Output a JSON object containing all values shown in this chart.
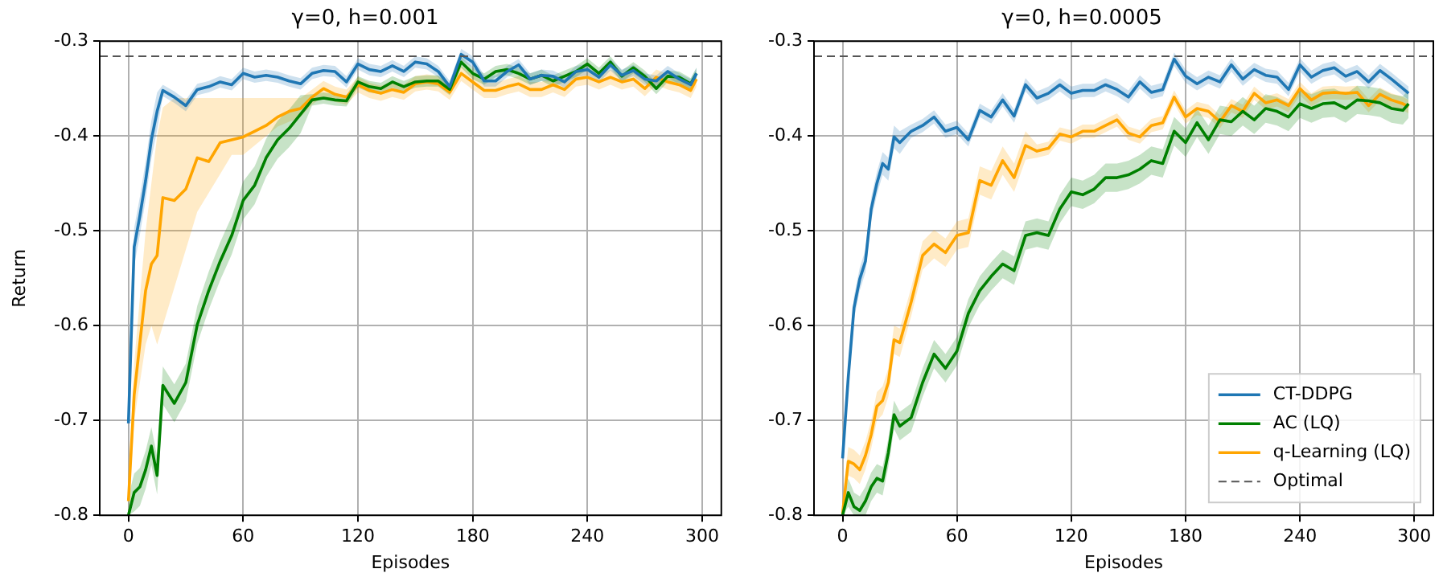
{
  "chart_data": [
    {
      "type": "line",
      "title": "γ=0, h=0.001",
      "xlabel": "Episodes",
      "ylabel": "Return",
      "xlim": [
        -15,
        310
      ],
      "xticks": [
        0,
        60,
        120,
        180,
        240,
        300
      ],
      "ylim": [
        -0.8,
        -0.3
      ],
      "yticks": [
        -0.8,
        -0.7,
        -0.6,
        -0.5,
        -0.4,
        -0.3
      ],
      "grid": true,
      "x": [
        0,
        3,
        6,
        9,
        12,
        15,
        18,
        24,
        30,
        36,
        42,
        48,
        54,
        60,
        66,
        72,
        78,
        84,
        90,
        96,
        102,
        108,
        114,
        120,
        126,
        132,
        138,
        144,
        150,
        156,
        162,
        168,
        174,
        180,
        186,
        192,
        198,
        204,
        210,
        216,
        222,
        228,
        234,
        240,
        246,
        252,
        258,
        264,
        270,
        276,
        282,
        288,
        294,
        297
      ],
      "ref_lines": [
        {
          "axis": "y",
          "value": -0.316,
          "color": "#555555",
          "line_style": "dashed"
        }
      ],
      "series": [
        {
          "color": "#1f77b4",
          "values": [
            -0.703,
            -0.517,
            -0.484,
            -0.447,
            -0.404,
            -0.374,
            -0.352,
            -0.359,
            -0.368,
            -0.351,
            -0.348,
            -0.343,
            -0.346,
            -0.334,
            -0.338,
            -0.336,
            -0.338,
            -0.342,
            -0.345,
            -0.334,
            -0.331,
            -0.332,
            -0.343,
            -0.324,
            -0.33,
            -0.332,
            -0.326,
            -0.332,
            -0.322,
            -0.324,
            -0.332,
            -0.348,
            -0.314,
            -0.322,
            -0.342,
            -0.342,
            -0.332,
            -0.325,
            -0.34,
            -0.336,
            -0.337,
            -0.343,
            -0.332,
            -0.33,
            -0.338,
            -0.325,
            -0.336,
            -0.331,
            -0.34,
            -0.342,
            -0.332,
            -0.34,
            -0.346,
            -0.334
          ],
          "lower": [
            -0.723,
            -0.537,
            -0.504,
            -0.467,
            -0.424,
            -0.394,
            -0.358,
            -0.365,
            -0.374,
            -0.357,
            -0.354,
            -0.349,
            -0.352,
            -0.34,
            -0.344,
            -0.342,
            -0.344,
            -0.348,
            -0.351,
            -0.34,
            -0.337,
            -0.338,
            -0.349,
            -0.33,
            -0.336,
            -0.338,
            -0.332,
            -0.338,
            -0.328,
            -0.33,
            -0.338,
            -0.354,
            -0.32,
            -0.328,
            -0.348,
            -0.348,
            -0.338,
            -0.331,
            -0.346,
            -0.342,
            -0.343,
            -0.349,
            -0.338,
            -0.336,
            -0.344,
            -0.331,
            -0.342,
            -0.337,
            -0.346,
            -0.348,
            -0.338,
            -0.346,
            -0.352,
            -0.34
          ],
          "upper": [
            -0.683,
            -0.497,
            -0.464,
            -0.427,
            -0.384,
            -0.354,
            -0.346,
            -0.353,
            -0.362,
            -0.345,
            -0.342,
            -0.337,
            -0.34,
            -0.328,
            -0.332,
            -0.33,
            -0.332,
            -0.336,
            -0.339,
            -0.328,
            -0.325,
            -0.326,
            -0.337,
            -0.318,
            -0.324,
            -0.326,
            -0.32,
            -0.326,
            -0.316,
            -0.318,
            -0.326,
            -0.342,
            -0.308,
            -0.316,
            -0.336,
            -0.336,
            -0.326,
            -0.319,
            -0.334,
            -0.33,
            -0.331,
            -0.337,
            -0.326,
            -0.324,
            -0.332,
            -0.319,
            -0.33,
            -0.325,
            -0.334,
            -0.336,
            -0.326,
            -0.334,
            -0.34,
            -0.328
          ]
        },
        {
          "color": "#008000",
          "values": [
            -0.8,
            -0.776,
            -0.77,
            -0.752,
            -0.727,
            -0.758,
            -0.663,
            -0.682,
            -0.66,
            -0.599,
            -0.563,
            -0.532,
            -0.505,
            -0.468,
            -0.452,
            -0.423,
            -0.404,
            -0.392,
            -0.377,
            -0.362,
            -0.36,
            -0.362,
            -0.363,
            -0.343,
            -0.348,
            -0.35,
            -0.343,
            -0.348,
            -0.343,
            -0.342,
            -0.342,
            -0.351,
            -0.322,
            -0.334,
            -0.34,
            -0.332,
            -0.33,
            -0.334,
            -0.34,
            -0.336,
            -0.342,
            -0.337,
            -0.332,
            -0.324,
            -0.334,
            -0.322,
            -0.337,
            -0.328,
            -0.337,
            -0.35,
            -0.337,
            -0.338,
            -0.345,
            -0.334
          ],
          "lower": [
            -0.8,
            -0.796,
            -0.79,
            -0.772,
            -0.747,
            -0.778,
            -0.683,
            -0.702,
            -0.68,
            -0.619,
            -0.583,
            -0.552,
            -0.525,
            -0.488,
            -0.472,
            -0.443,
            -0.424,
            -0.412,
            -0.397,
            -0.368,
            -0.366,
            -0.368,
            -0.369,
            -0.349,
            -0.354,
            -0.356,
            -0.349,
            -0.354,
            -0.349,
            -0.348,
            -0.348,
            -0.357,
            -0.328,
            -0.34,
            -0.346,
            -0.338,
            -0.336,
            -0.34,
            -0.346,
            -0.342,
            -0.348,
            -0.343,
            -0.338,
            -0.33,
            -0.34,
            -0.328,
            -0.343,
            -0.334,
            -0.343,
            -0.356,
            -0.343,
            -0.344,
            -0.351,
            -0.34
          ],
          "upper": [
            -0.78,
            -0.756,
            -0.75,
            -0.732,
            -0.707,
            -0.738,
            -0.643,
            -0.662,
            -0.64,
            -0.579,
            -0.543,
            -0.512,
            -0.485,
            -0.448,
            -0.432,
            -0.403,
            -0.384,
            -0.372,
            -0.357,
            -0.356,
            -0.354,
            -0.356,
            -0.357,
            -0.337,
            -0.342,
            -0.344,
            -0.337,
            -0.342,
            -0.337,
            -0.336,
            -0.336,
            -0.345,
            -0.316,
            -0.328,
            -0.334,
            -0.326,
            -0.324,
            -0.328,
            -0.334,
            -0.33,
            -0.336,
            -0.331,
            -0.326,
            -0.318,
            -0.328,
            -0.316,
            -0.331,
            -0.322,
            -0.331,
            -0.344,
            -0.331,
            -0.332,
            -0.339,
            -0.328
          ]
        },
        {
          "color": "#ffa500",
          "values": [
            -0.785,
            -0.673,
            -0.618,
            -0.563,
            -0.535,
            -0.526,
            -0.465,
            -0.468,
            -0.456,
            -0.423,
            -0.427,
            -0.407,
            -0.404,
            -0.401,
            -0.395,
            -0.389,
            -0.38,
            -0.374,
            -0.371,
            -0.359,
            -0.35,
            -0.356,
            -0.359,
            -0.346,
            -0.352,
            -0.355,
            -0.351,
            -0.354,
            -0.345,
            -0.343,
            -0.345,
            -0.354,
            -0.334,
            -0.343,
            -0.352,
            -0.352,
            -0.348,
            -0.345,
            -0.351,
            -0.351,
            -0.346,
            -0.351,
            -0.34,
            -0.338,
            -0.343,
            -0.338,
            -0.343,
            -0.34,
            -0.35,
            -0.338,
            -0.343,
            -0.346,
            -0.352,
            -0.34
          ],
          "lower": [
            -0.8,
            -0.7,
            -0.66,
            -0.62,
            -0.6,
            -0.62,
            -0.6,
            -0.56,
            -0.52,
            -0.48,
            -0.46,
            -0.44,
            -0.42,
            -0.42,
            -0.41,
            -0.4,
            -0.39,
            -0.385,
            -0.38,
            -0.367,
            -0.358,
            -0.364,
            -0.367,
            -0.354,
            -0.36,
            -0.363,
            -0.359,
            -0.362,
            -0.353,
            -0.351,
            -0.353,
            -0.362,
            -0.342,
            -0.351,
            -0.36,
            -0.36,
            -0.356,
            -0.353,
            -0.359,
            -0.359,
            -0.354,
            -0.359,
            -0.348,
            -0.346,
            -0.351,
            -0.346,
            -0.351,
            -0.348,
            -0.358,
            -0.346,
            -0.351,
            -0.354,
            -0.36,
            -0.348
          ],
          "upper": [
            -0.77,
            -0.64,
            -0.57,
            -0.5,
            -0.45,
            -0.4,
            -0.37,
            -0.36,
            -0.36,
            -0.36,
            -0.36,
            -0.36,
            -0.36,
            -0.36,
            -0.36,
            -0.36,
            -0.36,
            -0.36,
            -0.36,
            -0.351,
            -0.342,
            -0.348,
            -0.351,
            -0.338,
            -0.344,
            -0.347,
            -0.343,
            -0.346,
            -0.337,
            -0.335,
            -0.337,
            -0.346,
            -0.326,
            -0.335,
            -0.344,
            -0.344,
            -0.34,
            -0.337,
            -0.343,
            -0.343,
            -0.338,
            -0.343,
            -0.332,
            -0.33,
            -0.335,
            -0.33,
            -0.335,
            -0.332,
            -0.342,
            -0.33,
            -0.335,
            -0.338,
            -0.344,
            -0.332
          ]
        }
      ]
    },
    {
      "type": "line",
      "title": "γ=0, h=0.0005",
      "xlabel": "Episodes",
      "xlim": [
        -15,
        310
      ],
      "xticks": [
        0,
        60,
        120,
        180,
        240,
        300
      ],
      "ylim": [
        -0.8,
        -0.3
      ],
      "yticks": [
        -0.8,
        -0.7,
        -0.6,
        -0.5,
        -0.4,
        -0.3
      ],
      "grid": true,
      "legend": "bottom right",
      "x": [
        0,
        3,
        6,
        9,
        12,
        15,
        18,
        21,
        24,
        27,
        30,
        36,
        42,
        48,
        54,
        60,
        66,
        72,
        78,
        84,
        90,
        96,
        102,
        108,
        114,
        120,
        126,
        132,
        138,
        144,
        150,
        156,
        162,
        168,
        174,
        180,
        186,
        192,
        198,
        204,
        210,
        216,
        222,
        228,
        234,
        240,
        246,
        252,
        258,
        264,
        270,
        276,
        282,
        288,
        294,
        297
      ],
      "ref_lines": [
        {
          "axis": "y",
          "value": -0.316,
          "label": "Optimal",
          "color": "#555555",
          "line_style": "dashed"
        }
      ],
      "series": [
        {
          "name": "CT-DDPG",
          "color": "#1f77b4",
          "values": [
            -0.74,
            -0.654,
            -0.581,
            -0.551,
            -0.532,
            -0.477,
            -0.45,
            -0.429,
            -0.435,
            -0.401,
            -0.407,
            -0.395,
            -0.389,
            -0.38,
            -0.395,
            -0.391,
            -0.404,
            -0.373,
            -0.38,
            -0.362,
            -0.379,
            -0.346,
            -0.36,
            -0.355,
            -0.346,
            -0.355,
            -0.352,
            -0.352,
            -0.346,
            -0.351,
            -0.359,
            -0.343,
            -0.354,
            -0.351,
            -0.319,
            -0.337,
            -0.345,
            -0.338,
            -0.343,
            -0.325,
            -0.34,
            -0.33,
            -0.336,
            -0.338,
            -0.351,
            -0.325,
            -0.338,
            -0.331,
            -0.328,
            -0.337,
            -0.332,
            -0.343,
            -0.331,
            -0.34,
            -0.35,
            -0.355
          ],
          "lower": [
            -0.752,
            -0.666,
            -0.593,
            -0.563,
            -0.544,
            -0.489,
            -0.462,
            -0.441,
            -0.447,
            -0.413,
            -0.419,
            -0.402,
            -0.396,
            -0.387,
            -0.402,
            -0.398,
            -0.411,
            -0.38,
            -0.387,
            -0.369,
            -0.386,
            -0.353,
            -0.367,
            -0.362,
            -0.353,
            -0.362,
            -0.359,
            -0.359,
            -0.353,
            -0.358,
            -0.366,
            -0.35,
            -0.361,
            -0.358,
            -0.326,
            -0.344,
            -0.352,
            -0.345,
            -0.35,
            -0.332,
            -0.347,
            -0.337,
            -0.343,
            -0.345,
            -0.358,
            -0.332,
            -0.345,
            -0.338,
            -0.335,
            -0.344,
            -0.339,
            -0.35,
            -0.338,
            -0.347,
            -0.357,
            -0.362
          ],
          "upper": [
            -0.728,
            -0.642,
            -0.569,
            -0.539,
            -0.52,
            -0.465,
            -0.438,
            -0.417,
            -0.423,
            -0.389,
            -0.395,
            -0.388,
            -0.382,
            -0.373,
            -0.388,
            -0.384,
            -0.397,
            -0.366,
            -0.373,
            -0.355,
            -0.372,
            -0.339,
            -0.353,
            -0.348,
            -0.339,
            -0.348,
            -0.345,
            -0.345,
            -0.339,
            -0.344,
            -0.352,
            -0.336,
            -0.347,
            -0.344,
            -0.312,
            -0.33,
            -0.338,
            -0.331,
            -0.336,
            -0.318,
            -0.333,
            -0.323,
            -0.329,
            -0.331,
            -0.344,
            -0.318,
            -0.331,
            -0.324,
            -0.321,
            -0.33,
            -0.325,
            -0.336,
            -0.324,
            -0.333,
            -0.343,
            -0.348
          ]
        },
        {
          "name": "AC (LQ)",
          "color": "#008000",
          "values": [
            -0.8,
            -0.776,
            -0.791,
            -0.795,
            -0.785,
            -0.77,
            -0.761,
            -0.764,
            -0.734,
            -0.694,
            -0.706,
            -0.697,
            -0.66,
            -0.63,
            -0.645,
            -0.627,
            -0.587,
            -0.563,
            -0.548,
            -0.535,
            -0.542,
            -0.505,
            -0.502,
            -0.505,
            -0.477,
            -0.459,
            -0.462,
            -0.456,
            -0.444,
            -0.444,
            -0.441,
            -0.435,
            -0.426,
            -0.429,
            -0.395,
            -0.407,
            -0.386,
            -0.404,
            -0.383,
            -0.385,
            -0.374,
            -0.383,
            -0.371,
            -0.374,
            -0.38,
            -0.366,
            -0.371,
            -0.366,
            -0.365,
            -0.371,
            -0.362,
            -0.363,
            -0.365,
            -0.371,
            -0.373,
            -0.366
          ],
          "lower": [
            -0.8,
            -0.791,
            -0.8,
            -0.8,
            -0.8,
            -0.785,
            -0.776,
            -0.779,
            -0.749,
            -0.709,
            -0.721,
            -0.712,
            -0.675,
            -0.645,
            -0.66,
            -0.642,
            -0.602,
            -0.578,
            -0.563,
            -0.55,
            -0.557,
            -0.52,
            -0.517,
            -0.52,
            -0.492,
            -0.474,
            -0.477,
            -0.471,
            -0.459,
            -0.459,
            -0.456,
            -0.45,
            -0.441,
            -0.444,
            -0.41,
            -0.422,
            -0.401,
            -0.419,
            -0.398,
            -0.4,
            -0.389,
            -0.398,
            -0.386,
            -0.389,
            -0.395,
            -0.381,
            -0.386,
            -0.381,
            -0.38,
            -0.386,
            -0.377,
            -0.378,
            -0.38,
            -0.386,
            -0.388,
            -0.381
          ],
          "upper": [
            -0.785,
            -0.761,
            -0.776,
            -0.78,
            -0.77,
            -0.755,
            -0.746,
            -0.749,
            -0.719,
            -0.679,
            -0.691,
            -0.682,
            -0.645,
            -0.615,
            -0.63,
            -0.612,
            -0.572,
            -0.548,
            -0.533,
            -0.52,
            -0.527,
            -0.49,
            -0.487,
            -0.49,
            -0.462,
            -0.444,
            -0.447,
            -0.441,
            -0.429,
            -0.429,
            -0.426,
            -0.42,
            -0.411,
            -0.414,
            -0.38,
            -0.392,
            -0.371,
            -0.389,
            -0.368,
            -0.37,
            -0.359,
            -0.368,
            -0.356,
            -0.359,
            -0.365,
            -0.351,
            -0.356,
            -0.351,
            -0.35,
            -0.356,
            -0.347,
            -0.348,
            -0.35,
            -0.356,
            -0.358,
            -0.351
          ]
        },
        {
          "name": "q-Learning (LQ)",
          "color": "#ffa500",
          "values": [
            -0.798,
            -0.743,
            -0.746,
            -0.752,
            -0.737,
            -0.715,
            -0.685,
            -0.679,
            -0.66,
            -0.615,
            -0.618,
            -0.575,
            -0.526,
            -0.514,
            -0.523,
            -0.505,
            -0.502,
            -0.447,
            -0.452,
            -0.426,
            -0.444,
            -0.41,
            -0.416,
            -0.413,
            -0.398,
            -0.401,
            -0.395,
            -0.395,
            -0.389,
            -0.383,
            -0.397,
            -0.401,
            -0.389,
            -0.386,
            -0.359,
            -0.38,
            -0.371,
            -0.374,
            -0.385,
            -0.368,
            -0.374,
            -0.355,
            -0.365,
            -0.362,
            -0.368,
            -0.35,
            -0.362,
            -0.355,
            -0.354,
            -0.355,
            -0.354,
            -0.368,
            -0.356,
            -0.362,
            -0.366,
            -0.369
          ],
          "lower": [
            -0.8,
            -0.758,
            -0.761,
            -0.767,
            -0.752,
            -0.73,
            -0.7,
            -0.694,
            -0.675,
            -0.63,
            -0.633,
            -0.59,
            -0.541,
            -0.529,
            -0.538,
            -0.52,
            -0.517,
            -0.462,
            -0.467,
            -0.441,
            -0.459,
            -0.425,
            -0.423,
            -0.42,
            -0.405,
            -0.408,
            -0.402,
            -0.402,
            -0.396,
            -0.39,
            -0.404,
            -0.408,
            -0.396,
            -0.393,
            -0.366,
            -0.387,
            -0.378,
            -0.381,
            -0.392,
            -0.375,
            -0.381,
            -0.362,
            -0.372,
            -0.369,
            -0.375,
            -0.357,
            -0.369,
            -0.362,
            -0.361,
            -0.362,
            -0.361,
            -0.375,
            -0.363,
            -0.369,
            -0.373,
            -0.376
          ],
          "upper": [
            -0.783,
            -0.728,
            -0.731,
            -0.737,
            -0.722,
            -0.7,
            -0.67,
            -0.664,
            -0.645,
            -0.6,
            -0.603,
            -0.56,
            -0.511,
            -0.499,
            -0.508,
            -0.49,
            -0.487,
            -0.432,
            -0.437,
            -0.411,
            -0.429,
            -0.395,
            -0.409,
            -0.406,
            -0.391,
            -0.394,
            -0.388,
            -0.388,
            -0.382,
            -0.376,
            -0.39,
            -0.394,
            -0.382,
            -0.379,
            -0.352,
            -0.373,
            -0.364,
            -0.367,
            -0.378,
            -0.361,
            -0.367,
            -0.348,
            -0.358,
            -0.355,
            -0.361,
            -0.343,
            -0.355,
            -0.348,
            -0.347,
            -0.348,
            -0.347,
            -0.361,
            -0.349,
            -0.355,
            -0.359,
            -0.362
          ]
        }
      ]
    }
  ]
}
